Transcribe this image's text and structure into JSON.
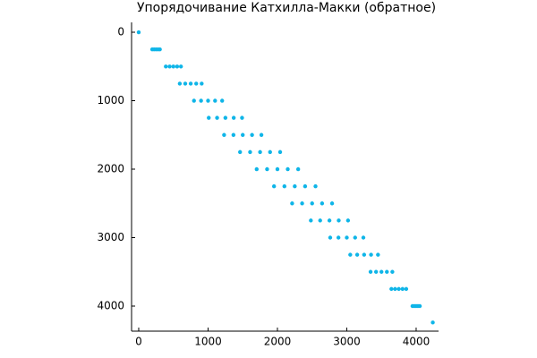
{
  "chart_data": {
    "type": "scatter",
    "title": "Упорядочивание Катхилла-Макки (обратное)",
    "color": "#0fb5e8",
    "x": [
      0,
      195,
      222,
      250,
      278,
      305,
      391,
      446,
      500,
      554,
      609,
      592,
      671,
      750,
      829,
      908,
      797,
      899,
      1000,
      1101,
      1203,
      1010,
      1130,
      1250,
      1370,
      1490,
      1231,
      1366,
      1500,
      1634,
      1769,
      1461,
      1606,
      1750,
      1894,
      2039,
      1701,
      1851,
      2000,
      2149,
      2299,
      1951,
      2101,
      2250,
      2399,
      2549,
      2212,
      2356,
      2500,
      2644,
      2788,
      2482,
      2616,
      2750,
      2884,
      3018,
      2761,
      2880,
      3000,
      3120,
      3239,
      3050,
      3150,
      3250,
      3350,
      3450,
      3343,
      3422,
      3500,
      3578,
      3657,
      3643,
      3696,
      3750,
      3804,
      3857,
      3947,
      3974,
      4000,
      4026,
      4053,
      4240
    ],
    "y": [
      0,
      250,
      250,
      250,
      250,
      250,
      500,
      500,
      500,
      500,
      500,
      750,
      750,
      750,
      750,
      750,
      1000,
      1000,
      1000,
      1000,
      1000,
      1250,
      1250,
      1250,
      1250,
      1250,
      1500,
      1500,
      1500,
      1500,
      1500,
      1750,
      1750,
      1750,
      1750,
      1750,
      2000,
      2000,
      2000,
      2000,
      2000,
      2250,
      2250,
      2250,
      2250,
      2250,
      2500,
      2500,
      2500,
      2500,
      2500,
      2750,
      2750,
      2750,
      2750,
      2750,
      3000,
      3000,
      3000,
      3000,
      3000,
      3250,
      3250,
      3250,
      3250,
      3250,
      3500,
      3500,
      3500,
      3500,
      3500,
      3750,
      3750,
      3750,
      3750,
      3750,
      4000,
      4000,
      4000,
      4000,
      4000,
      4240
    ],
    "xlim": [
      -103,
      4323
    ],
    "xticks": [
      0,
      1000,
      2000,
      3000,
      4000
    ],
    "ylim": [
      4366,
      -144
    ],
    "yticks": [
      0,
      1000,
      2000,
      3000,
      4000
    ],
    "grid": false
  }
}
